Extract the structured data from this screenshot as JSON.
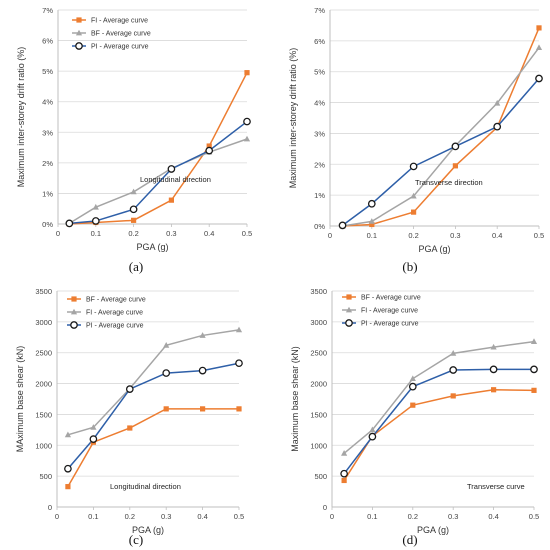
{
  "panel_labels": [
    "(a)",
    "(b)",
    "(c)",
    "(d)"
  ],
  "chart_data": [
    {
      "panel": "(a)",
      "type": "line",
      "xlabel": "PGA (g)",
      "ylabel": "Maximum inter-storey drift ratio (%)",
      "xlim": [
        0,
        0.5
      ],
      "ylim": [
        0,
        7
      ],
      "x_ticks": [
        "0",
        "0.1",
        "0.2",
        "0.3",
        "0.4",
        "0.5"
      ],
      "y_ticks": [
        "0%",
        "1%",
        "2%",
        "3%",
        "4%",
        "5%",
        "6%",
        "7%"
      ],
      "annotation": "Longitudinal direction",
      "legend_position": "top-left",
      "grid": "horizontal",
      "series": [
        {
          "name": "FI - Average curve",
          "color": "#ed7d31",
          "marker": "square",
          "x": [
            0.03,
            0.1,
            0.2,
            0.3,
            0.4,
            0.5
          ],
          "values": [
            0.0,
            0.05,
            0.12,
            0.78,
            2.55,
            4.95
          ]
        },
        {
          "name": "BF - Average curve",
          "color": "#a5a5a5",
          "marker": "triangle",
          "x": [
            0.03,
            0.1,
            0.2,
            0.3,
            0.4,
            0.5
          ],
          "values": [
            0.02,
            0.55,
            1.05,
            1.82,
            2.35,
            2.78
          ]
        },
        {
          "name": "PI - Average curve",
          "color": "#2e5fa8",
          "marker": "circle",
          "x": [
            0.03,
            0.1,
            0.2,
            0.3,
            0.4,
            0.5
          ],
          "values": [
            0.02,
            0.1,
            0.48,
            1.8,
            2.4,
            3.35
          ]
        }
      ]
    },
    {
      "panel": "(b)",
      "type": "line",
      "xlabel": "PGA (g)",
      "ylabel": "Maximum inter-storey drift ratio (%)",
      "xlim": [
        0,
        0.5
      ],
      "ylim": [
        0,
        7
      ],
      "x_ticks": [
        "0",
        "0.1",
        "0.2",
        "0.3",
        "0.4",
        "0.5"
      ],
      "y_ticks": [
        "0%",
        "1%",
        "2%",
        "3%",
        "4%",
        "5%",
        "6%",
        "7%"
      ],
      "annotation": "Transverse direction",
      "grid": "horizontal",
      "series": [
        {
          "color": "#ed7d31",
          "marker": "square",
          "x": [
            0.03,
            0.1,
            0.2,
            0.3,
            0.4,
            0.5
          ],
          "values": [
            0.0,
            0.05,
            0.45,
            1.95,
            3.2,
            6.42
          ]
        },
        {
          "color": "#a5a5a5",
          "marker": "triangle",
          "x": [
            0.03,
            0.1,
            0.2,
            0.3,
            0.4,
            0.5
          ],
          "values": [
            0.0,
            0.15,
            0.97,
            2.6,
            3.98,
            5.78
          ]
        },
        {
          "color": "#2e5fa8",
          "marker": "circle",
          "x": [
            0.03,
            0.1,
            0.2,
            0.3,
            0.4,
            0.5
          ],
          "values": [
            0.02,
            0.72,
            1.93,
            2.58,
            3.22,
            4.78
          ]
        }
      ]
    },
    {
      "panel": "(c)",
      "type": "line",
      "xlabel": "PGA (g)",
      "ylabel": "MAximum base shear (kN)",
      "xlim": [
        0,
        0.5
      ],
      "ylim": [
        0,
        3500
      ],
      "x_ticks": [
        "0",
        "0.1",
        "0.2",
        "0.3",
        "0.4",
        "0.5"
      ],
      "y_ticks": [
        "0",
        "500",
        "1000",
        "1500",
        "2000",
        "2500",
        "3000",
        "3500"
      ],
      "annotation": "Longitudinal direction",
      "legend_position": "top-left",
      "grid": "horizontal",
      "series": [
        {
          "name": "BF - Average curve",
          "color": "#ed7d31",
          "marker": "square",
          "x": [
            0.03,
            0.1,
            0.2,
            0.3,
            0.4,
            0.5
          ],
          "values": [
            330,
            1050,
            1280,
            1590,
            1590,
            1590
          ]
        },
        {
          "name": "FI - Average curve",
          "color": "#a5a5a5",
          "marker": "triangle",
          "x": [
            0.03,
            0.1,
            0.2,
            0.3,
            0.4,
            0.5
          ],
          "values": [
            1170,
            1290,
            1920,
            2620,
            2780,
            2870
          ]
        },
        {
          "name": "PI - Average curve",
          "color": "#2e5fa8",
          "marker": "circle",
          "x": [
            0.03,
            0.1,
            0.2,
            0.3,
            0.4,
            0.5
          ],
          "values": [
            620,
            1100,
            1910,
            2170,
            2210,
            2330
          ]
        }
      ]
    },
    {
      "panel": "(d)",
      "type": "line",
      "xlabel": "PGA (g)",
      "ylabel": "Maximum base shear (kN)",
      "xlim": [
        0,
        0.5
      ],
      "ylim": [
        0,
        3500
      ],
      "x_ticks": [
        "0",
        "0.1",
        "0.2",
        "0.3",
        "0.4",
        "0.5"
      ],
      "y_ticks": [
        "0",
        "500",
        "1000",
        "1500",
        "2000",
        "2500",
        "3000",
        "3500"
      ],
      "annotation": "Transverse curve",
      "legend_position": "top-left",
      "grid": "horizontal",
      "series": [
        {
          "name": "BF - Average curve",
          "color": "#ed7d31",
          "marker": "square",
          "x": [
            0.03,
            0.1,
            0.2,
            0.3,
            0.4,
            0.5
          ],
          "values": [
            430,
            1150,
            1650,
            1800,
            1900,
            1890
          ]
        },
        {
          "name": "FI - Average curve",
          "color": "#a5a5a5",
          "marker": "triangle",
          "x": [
            0.03,
            0.1,
            0.2,
            0.3,
            0.4,
            0.5
          ],
          "values": [
            870,
            1250,
            2080,
            2490,
            2590,
            2680
          ]
        },
        {
          "name": "PI - Average curve",
          "color": "#2e5fa8",
          "marker": "circle",
          "x": [
            0.03,
            0.1,
            0.2,
            0.3,
            0.4,
            0.5
          ],
          "values": [
            540,
            1140,
            1950,
            2220,
            2230,
            2230
          ]
        }
      ]
    }
  ]
}
